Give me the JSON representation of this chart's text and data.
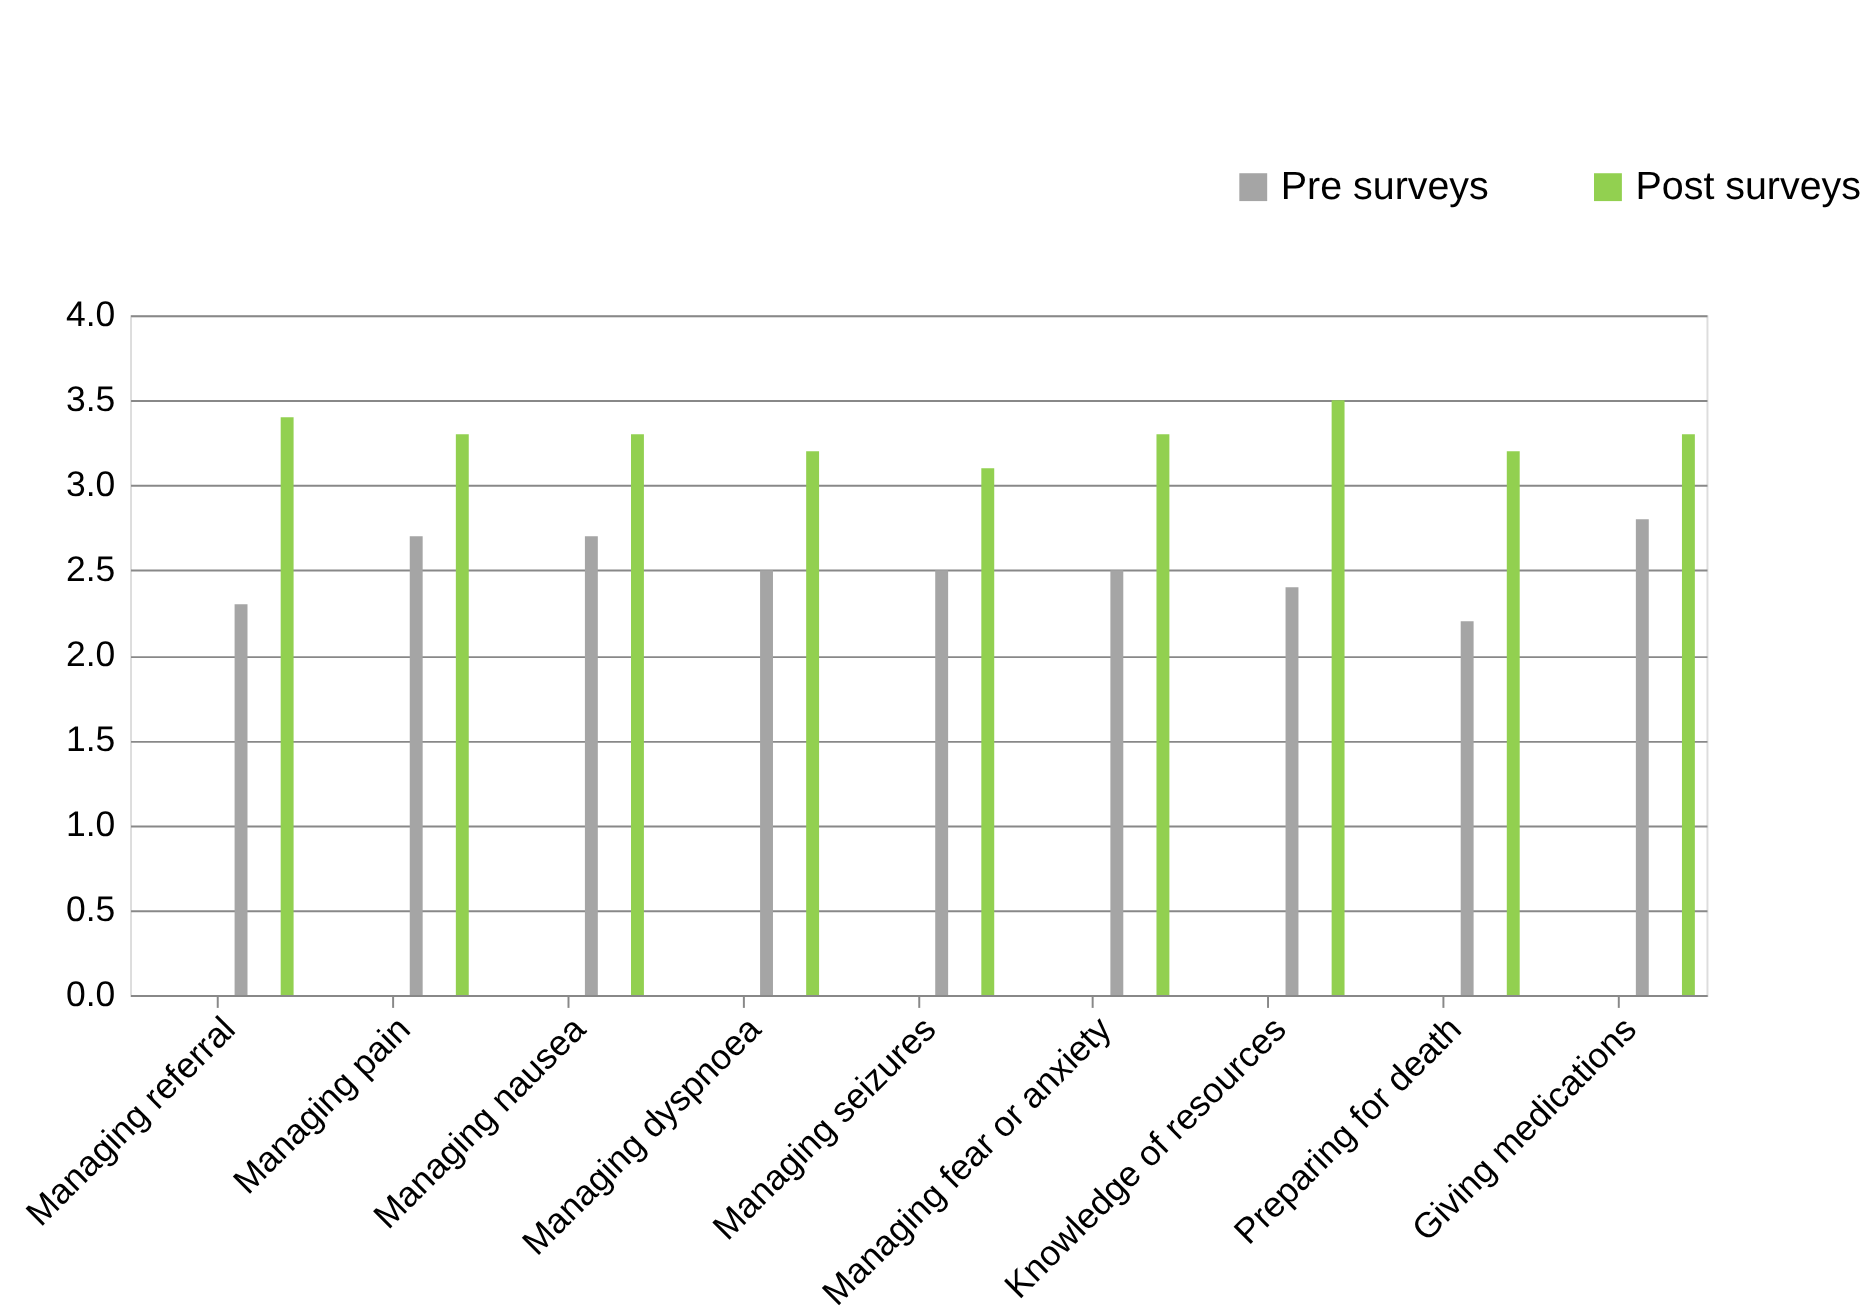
{
  "chart_data": {
    "type": "bar",
    "categories": [
      "Managing referral",
      "Managing pain",
      "Managing nausea",
      "Managing dyspnoea",
      "Managing seizures",
      "Managing fear or anxiety",
      "Knowledge of resources",
      "Preparing for death",
      "Giving medications"
    ],
    "series": [
      {
        "name": "Pre surveys",
        "color": "#a5a5a5",
        "values": [
          2.3,
          2.7,
          2.7,
          2.5,
          2.5,
          2.5,
          2.4,
          2.2,
          2.8
        ]
      },
      {
        "name": "Post surveys",
        "color": "#92d050",
        "values": [
          3.4,
          3.3,
          3.3,
          3.2,
          3.1,
          3.3,
          3.5,
          3.2,
          3.3
        ]
      }
    ],
    "ylim": [
      0,
      4.0
    ],
    "yticks": [
      {
        "value": 0,
        "label": "0.0"
      },
      {
        "value": 0.5,
        "label": "0.5"
      },
      {
        "value": 1,
        "label": "1.0"
      },
      {
        "value": 1.5,
        "label": "1.5"
      },
      {
        "value": 2,
        "label": "2.0"
      },
      {
        "value": 2.5,
        "label": "2.5"
      },
      {
        "value": 3,
        "label": "3.0"
      },
      {
        "value": 3.5,
        "label": "3.5"
      },
      {
        "value": 4,
        "label": "4.0"
      }
    ],
    "grid": "y",
    "legend": "top right"
  }
}
